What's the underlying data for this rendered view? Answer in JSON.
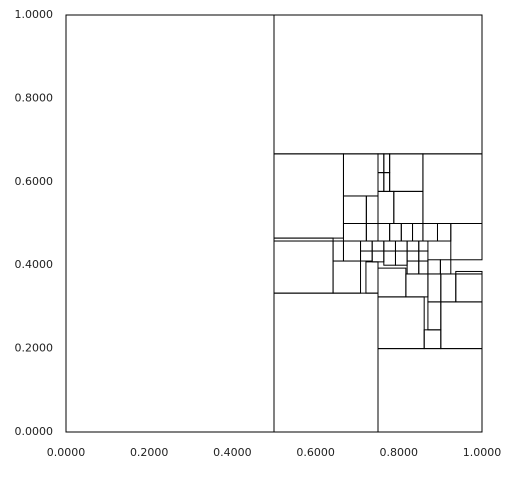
{
  "chart_data": {
    "type": "partition",
    "xlim": [
      0,
      1
    ],
    "ylim": [
      0,
      1
    ],
    "xticks": [
      {
        "value": 0,
        "label": "0.0000"
      },
      {
        "value": 0.2,
        "label": "0.2000"
      },
      {
        "value": 0.4,
        "label": "0.4000"
      },
      {
        "value": 0.6,
        "label": "0.6000"
      },
      {
        "value": 0.8,
        "label": "0.8000"
      },
      {
        "value": 1,
        "label": "1.0000"
      }
    ],
    "yticks": [
      {
        "value": 0,
        "label": "0.0000"
      },
      {
        "value": 0.2,
        "label": "0.2000"
      },
      {
        "value": 0.4,
        "label": "0.4000"
      },
      {
        "value": 0.6,
        "label": "0.6000"
      },
      {
        "value": 0.8,
        "label": "0.8000"
      },
      {
        "value": 1,
        "label": "1.0000"
      }
    ],
    "color": "#000000",
    "rects": [
      [
        0,
        0,
        0.5,
        1
      ],
      [
        0.5,
        0.667,
        1,
        1
      ],
      [
        0.5,
        0,
        0.75,
        0.333
      ],
      [
        0.75,
        0,
        1,
        0.2
      ],
      [
        0.5,
        0.333,
        0.642,
        0.458
      ],
      [
        0.5,
        0.465,
        0.667,
        0.667
      ],
      [
        0.5,
        0.458,
        0.642,
        0.465
      ],
      [
        0.667,
        0.566,
        0.75,
        0.667
      ],
      [
        0.667,
        0.5,
        0.722,
        0.566
      ],
      [
        0.778,
        0.577,
        0.858,
        0.667
      ],
      [
        0.788,
        0.5,
        0.858,
        0.577
      ],
      [
        0.858,
        0.5,
        1,
        0.667
      ],
      [
        0.925,
        0.413,
        1,
        0.5
      ],
      [
        0.642,
        0.333,
        0.708,
        0.41
      ],
      [
        0.721,
        0.333,
        0.75,
        0.408
      ],
      [
        0.75,
        0.324,
        0.817,
        0.393
      ],
      [
        0.817,
        0.324,
        0.87,
        0.379
      ],
      [
        0.75,
        0.2,
        0.861,
        0.324
      ],
      [
        0.901,
        0.2,
        1,
        0.312
      ],
      [
        0.87,
        0.245,
        0.901,
        0.312
      ],
      [
        0.861,
        0.2,
        0.901,
        0.245
      ],
      [
        0.937,
        0.312,
        1,
        0.379
      ],
      [
        0.901,
        0.312,
        0.937,
        0.379
      ],
      [
        0.87,
        0.312,
        0.901,
        0.379
      ],
      [
        0.642,
        0.41,
        0.667,
        0.458
      ],
      [
        0.722,
        0.458,
        0.75,
        0.5
      ],
      [
        0.75,
        0.458,
        0.778,
        0.5
      ],
      [
        0.778,
        0.458,
        0.806,
        0.5
      ],
      [
        0.806,
        0.458,
        0.833,
        0.5
      ],
      [
        0.833,
        0.458,
        0.858,
        0.5
      ],
      [
        0.858,
        0.458,
        0.893,
        0.5
      ],
      [
        0.893,
        0.458,
        0.925,
        0.5
      ],
      [
        0.667,
        0.458,
        0.722,
        0.5
      ],
      [
        0.667,
        0.41,
        0.708,
        0.458
      ],
      [
        0.708,
        0.41,
        0.736,
        0.434
      ],
      [
        0.736,
        0.408,
        0.764,
        0.434
      ],
      [
        0.764,
        0.4,
        0.792,
        0.434
      ],
      [
        0.792,
        0.4,
        0.82,
        0.434
      ],
      [
        0.82,
        0.379,
        0.848,
        0.41
      ],
      [
        0.848,
        0.379,
        0.87,
        0.41
      ],
      [
        0.87,
        0.379,
        0.9,
        0.413
      ],
      [
        0.9,
        0.379,
        0.925,
        0.413
      ],
      [
        0.708,
        0.434,
        0.736,
        0.458
      ],
      [
        0.736,
        0.434,
        0.764,
        0.458
      ],
      [
        0.764,
        0.434,
        0.792,
        0.458
      ],
      [
        0.792,
        0.434,
        0.82,
        0.458
      ],
      [
        0.82,
        0.41,
        0.848,
        0.434
      ],
      [
        0.848,
        0.41,
        0.87,
        0.434
      ],
      [
        0.82,
        0.434,
        0.848,
        0.458
      ],
      [
        0.848,
        0.434,
        0.87,
        0.458
      ],
      [
        0.75,
        0.622,
        0.764,
        0.667
      ],
      [
        0.764,
        0.622,
        0.778,
        0.667
      ],
      [
        0.75,
        0.577,
        0.764,
        0.622
      ],
      [
        0.764,
        0.577,
        0.778,
        0.622
      ],
      [
        0.937,
        0.379,
        1,
        0.385
      ],
      [
        0.722,
        0.5,
        0.75,
        0.566
      ],
      [
        0.75,
        0.5,
        0.788,
        0.577
      ]
    ]
  }
}
